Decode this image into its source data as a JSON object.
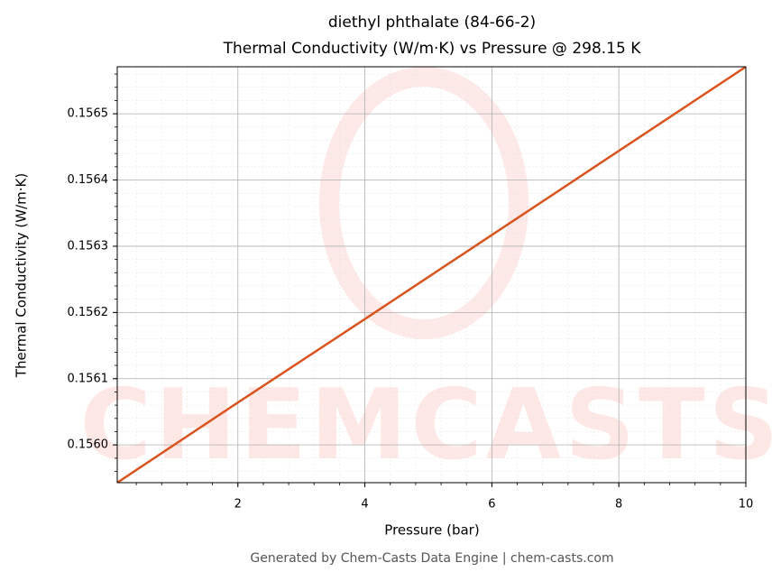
{
  "chart_data": {
    "type": "line",
    "title": "diethyl phthalate (84-66-2)",
    "subtitle": "Thermal Conductivity (W/m·K) vs Pressure @ 298.15 K",
    "x_label": "Pressure (bar)",
    "y_label": "Thermal Conductivity (W/m·K)",
    "watermark": "CHEMCASTS",
    "footer": "Generated by Chem-Casts Data Engine | chem-casts.com",
    "x": [
      0.1,
      2,
      4,
      6,
      8,
      10
    ],
    "series": [
      {
        "name": "Thermal Conductivity",
        "color": "#d9541e",
        "values": [
          0.155943,
          0.156064,
          0.15619,
          0.156317,
          0.156444,
          0.156571
        ]
      }
    ],
    "xlim": [
      0.1,
      10
    ],
    "ylim": [
      0.155943,
      0.156571
    ],
    "xticks": [
      2,
      4,
      6,
      8,
      10
    ],
    "yticks": [
      {
        "value": 0.156,
        "label": "0.1560"
      },
      {
        "value": 0.1561,
        "label": "0.1561"
      },
      {
        "value": 0.1562,
        "label": "0.1562"
      },
      {
        "value": 0.1563,
        "label": "0.1563"
      },
      {
        "value": 0.1564,
        "label": "0.1564"
      },
      {
        "value": 0.1565,
        "label": "0.1565"
      }
    ],
    "grid": true
  }
}
